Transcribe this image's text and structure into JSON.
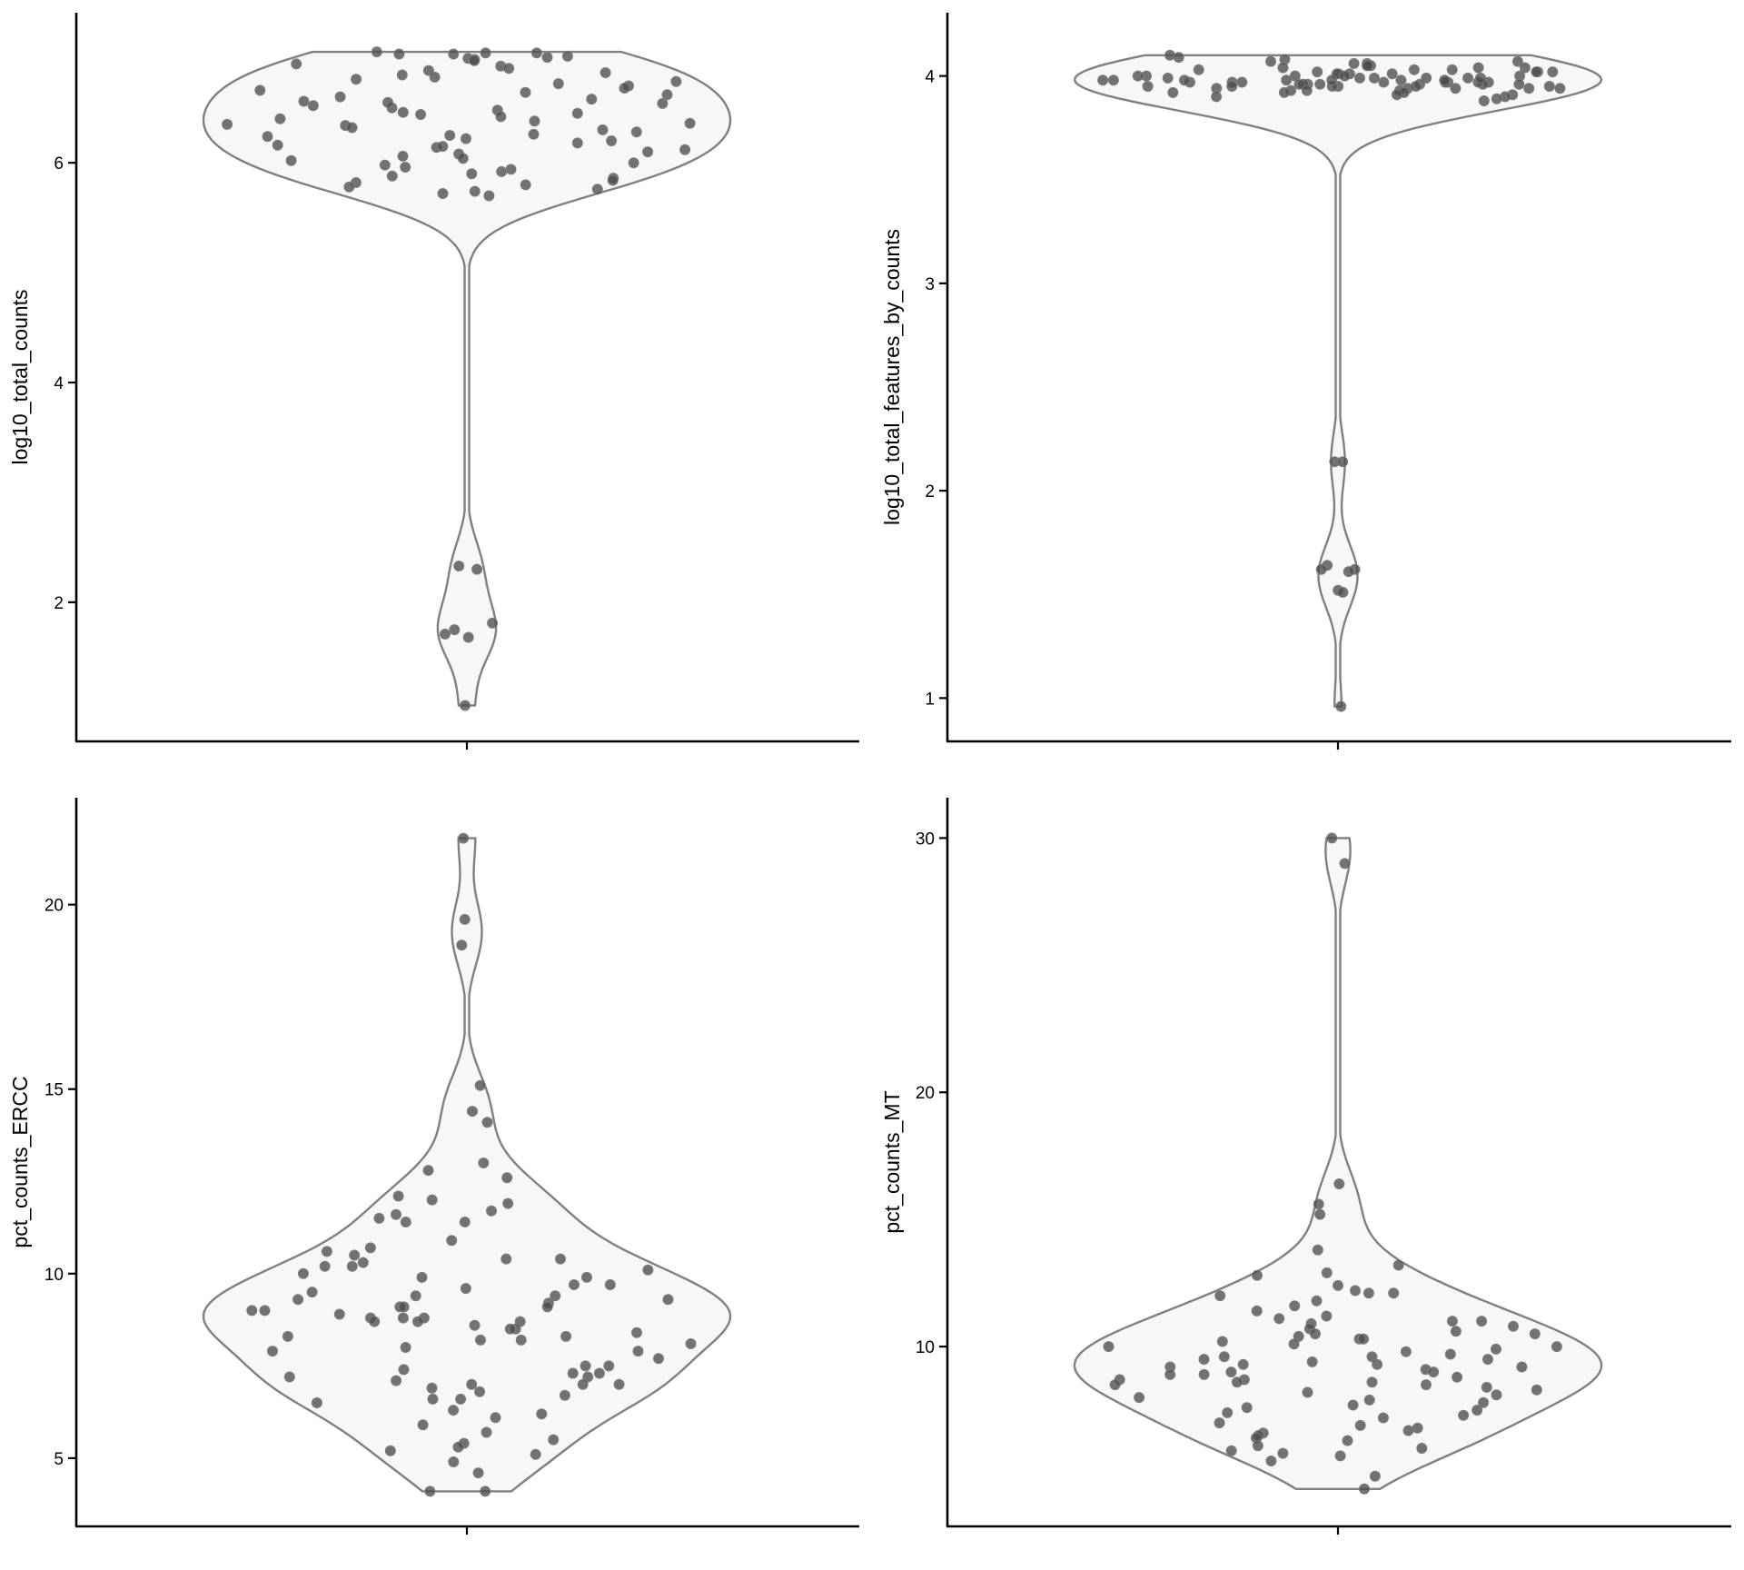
{
  "chart_data": [
    {
      "type": "violin",
      "ylabel": "log10_total_counts",
      "yticks": [
        2,
        4,
        6
      ],
      "ylim": [
        0.75,
        7.3
      ],
      "grid": false,
      "values": [
        7.01,
        7.0,
        7.0,
        6.99,
        6.99,
        6.97,
        6.96,
        6.95,
        6.94,
        6.93,
        6.9,
        6.88,
        6.86,
        6.84,
        6.82,
        6.8,
        6.78,
        6.76,
        6.74,
        6.72,
        6.7,
        6.68,
        6.66,
        6.64,
        6.62,
        6.6,
        6.58,
        6.56,
        6.54,
        6.52,
        6.5,
        6.48,
        6.46,
        6.44,
        6.42,
        6.4,
        6.38,
        6.36,
        6.34,
        6.32,
        6.3,
        6.28,
        6.26,
        6.24,
        6.22,
        6.2,
        6.18,
        6.16,
        6.14,
        6.12,
        6.1,
        6.08,
        6.06,
        6.04,
        6.02,
        6.0,
        5.98,
        5.96,
        5.94,
        5.92,
        5.9,
        5.88,
        5.86,
        5.84,
        5.82,
        5.8,
        5.78,
        5.76,
        5.74,
        5.72,
        5.7,
        6.15,
        6.25,
        6.35,
        6.45,
        6.55,
        2.33,
        2.3,
        1.81,
        1.75,
        1.71,
        1.68,
        1.06
      ]
    },
    {
      "type": "violin",
      "ylabel": "log10_total_features_by_counts",
      "yticks": [
        1,
        2,
        3,
        4
      ],
      "ylim": [
        0.8,
        4.27
      ],
      "grid": false,
      "values": [
        4.1,
        4.09,
        4.08,
        4.07,
        4.07,
        4.06,
        4.06,
        4.05,
        4.05,
        4.05,
        4.04,
        4.04,
        4.04,
        4.03,
        4.03,
        4.03,
        4.02,
        4.02,
        4.02,
        4.01,
        4.01,
        4.01,
        4.0,
        4.0,
        4.0,
        4.0,
        3.99,
        3.99,
        3.99,
        3.99,
        3.98,
        3.98,
        3.98,
        3.98,
        3.97,
        3.97,
        3.97,
        3.97,
        3.96,
        3.96,
        3.96,
        3.96,
        3.95,
        3.95,
        3.95,
        3.95,
        3.94,
        3.94,
        3.94,
        3.94,
        3.93,
        3.93,
        3.93,
        3.92,
        3.92,
        3.92,
        3.91,
        3.91,
        3.9,
        3.9,
        3.89,
        3.88,
        3.98,
        3.97,
        3.96,
        3.99,
        4.0,
        3.95,
        3.98,
        3.97,
        4.01,
        3.96,
        3.99,
        3.94,
        3.97,
        4.02,
        3.95,
        3.98,
        3.97,
        3.96,
        2.14,
        2.14,
        1.64,
        1.62,
        1.62,
        1.61,
        1.52,
        1.51,
        0.96
      ]
    },
    {
      "type": "violin",
      "ylabel": "pct_counts_ERCC",
      "yticks": [
        5,
        10,
        15,
        20
      ],
      "ylim": [
        3.2,
        22.7
      ],
      "grid": false,
      "values": [
        21.8,
        19.6,
        18.9,
        15.1,
        14.4,
        14.1,
        13.0,
        12.8,
        12.6,
        12.1,
        12.0,
        11.9,
        11.7,
        11.6,
        11.5,
        11.4,
        11.4,
        10.9,
        10.7,
        10.6,
        10.5,
        10.4,
        10.4,
        10.3,
        10.2,
        10.2,
        10.1,
        10.0,
        9.9,
        9.9,
        9.7,
        9.7,
        9.6,
        9.5,
        9.4,
        9.4,
        9.3,
        9.3,
        9.2,
        9.1,
        9.1,
        9.1,
        9.0,
        9.0,
        8.9,
        8.8,
        8.8,
        8.8,
        8.7,
        8.7,
        8.7,
        8.6,
        8.5,
        8.5,
        8.4,
        8.3,
        8.3,
        8.2,
        8.2,
        8.1,
        8.0,
        7.9,
        7.9,
        7.7,
        7.5,
        7.5,
        7.4,
        7.3,
        7.3,
        7.2,
        7.2,
        7.1,
        7.0,
        7.0,
        7.0,
        6.9,
        6.8,
        6.7,
        6.6,
        6.6,
        6.5,
        6.3,
        6.2,
        6.1,
        5.9,
        5.7,
        5.5,
        5.4,
        5.3,
        5.2,
        5.1,
        4.9,
        4.6,
        4.1,
        4.1
      ]
    },
    {
      "type": "violin",
      "ylabel": "pct_counts_MT",
      "yticks": [
        10,
        20,
        30
      ],
      "ylim": [
        3.0,
        31.3
      ],
      "grid": false,
      "values": [
        30.0,
        29.0,
        16.4,
        15.6,
        15.2,
        13.8,
        13.2,
        12.9,
        12.8,
        12.4,
        12.2,
        12.1,
        12.1,
        12.0,
        11.8,
        11.6,
        11.4,
        11.2,
        11.1,
        11.0,
        11.0,
        10.9,
        10.8,
        10.7,
        10.6,
        10.5,
        10.5,
        10.4,
        10.3,
        10.3,
        10.2,
        10.1,
        10.0,
        10.0,
        9.9,
        9.8,
        9.7,
        9.6,
        9.6,
        9.5,
        9.5,
        9.4,
        9.3,
        9.3,
        9.2,
        9.2,
        9.1,
        9.0,
        9.0,
        8.9,
        8.9,
        8.8,
        8.7,
        8.7,
        8.6,
        8.6,
        8.5,
        8.5,
        8.4,
        8.3,
        8.2,
        8.1,
        8.0,
        7.9,
        7.8,
        7.7,
        7.6,
        7.5,
        7.4,
        7.3,
        7.2,
        7.0,
        6.9,
        6.8,
        6.7,
        6.6,
        6.5,
        6.4,
        6.3,
        6.1,
        6.0,
        5.9,
        5.8,
        5.7,
        5.5,
        4.9,
        4.4
      ]
    }
  ]
}
